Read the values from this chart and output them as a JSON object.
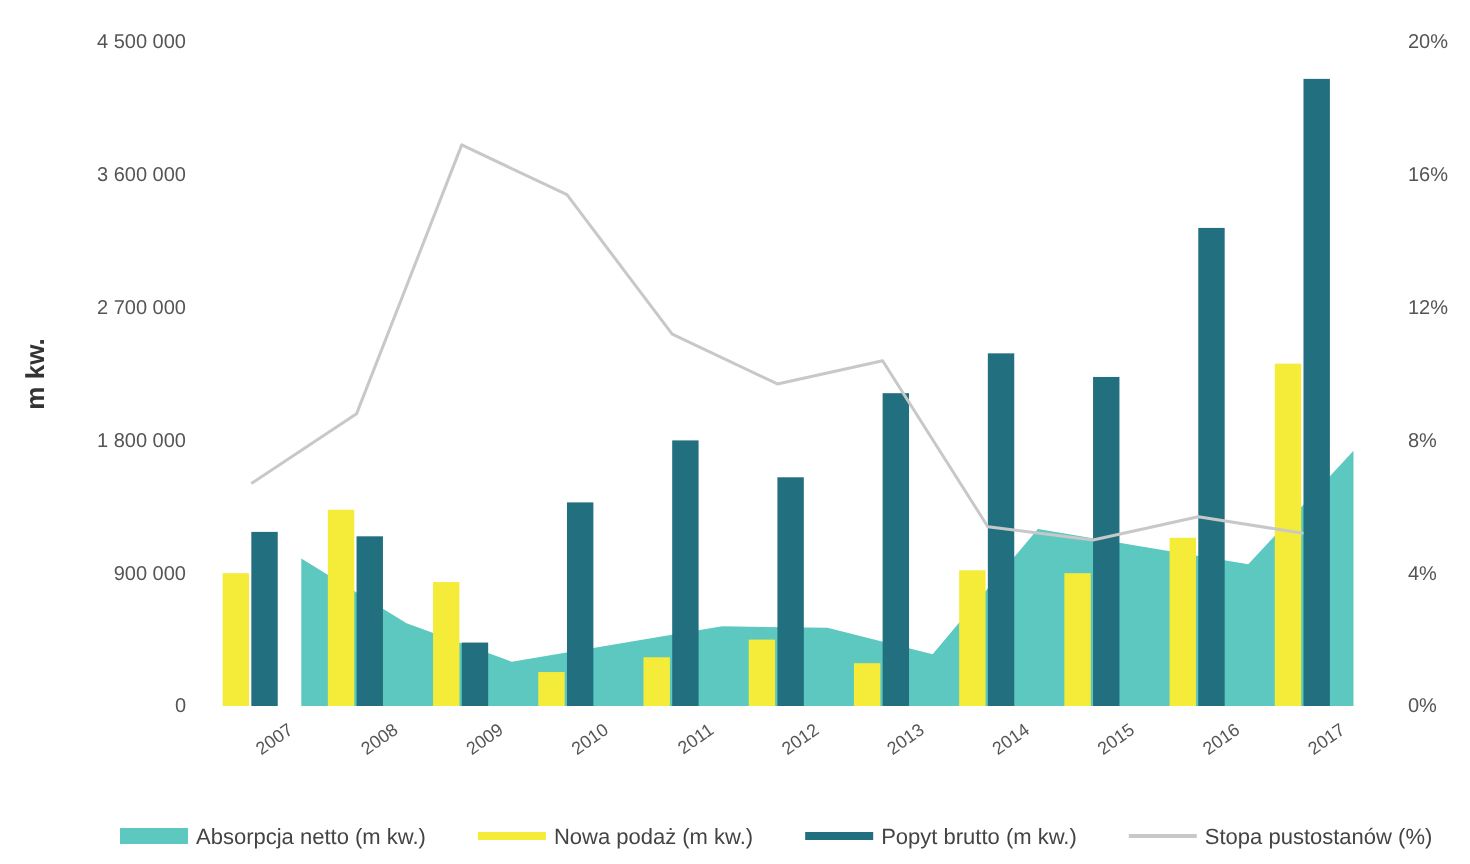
{
  "chart_data": {
    "type": "bar",
    "ylabel": "m kw.",
    "categories": [
      "2007",
      "2008",
      "2009",
      "2010",
      "2011",
      "2012",
      "2013",
      "2014",
      "2015",
      "2016",
      "2017"
    ],
    "series": [
      {
        "name": "Absorpcja netto (m kw.)",
        "type": "area",
        "color": "#5cc8c0",
        "values": [
          1000000,
          560000,
          300000,
          420000,
          540000,
          530000,
          350000,
          1200000,
          1080000,
          960000,
          1730000
        ]
      },
      {
        "name": "Nowa podaż (m kw.)",
        "color": "#f5ec3a",
        "values": [
          900000,
          1330000,
          840000,
          230000,
          330000,
          450000,
          290000,
          920000,
          900000,
          1140000,
          2320000
        ]
      },
      {
        "name": "Popyt brutto (m kw.)",
        "color": "#22707f",
        "values": [
          1180000,
          1150000,
          430000,
          1380000,
          1800000,
          1550000,
          2120000,
          2390000,
          2230000,
          3240000,
          4250000
        ]
      },
      {
        "name": "Stopa pustostanów (%)",
        "type": "line",
        "axis": "y2",
        "color": "#c8c8c8",
        "values": [
          6.7,
          8.8,
          16.9,
          15.4,
          11.2,
          9.7,
          10.4,
          5.4,
          5.0,
          5.7,
          5.2
        ]
      }
    ],
    "ylim": [
      0,
      4500000
    ],
    "yticks": [
      {
        "value": 0,
        "label": "0"
      },
      {
        "value": 900000,
        "label": "900 000"
      },
      {
        "value": 1800000,
        "label": "1 800 000"
      },
      {
        "value": 2700000,
        "label": "2 700 000"
      },
      {
        "value": 3600000,
        "label": "3 600 000"
      },
      {
        "value": 4500000,
        "label": "4 500 000"
      }
    ],
    "y2lim": [
      0,
      20
    ],
    "y2ticks": [
      {
        "value": 0,
        "label": "0%"
      },
      {
        "value": 4,
        "label": "4%"
      },
      {
        "value": 8,
        "label": "8%"
      },
      {
        "value": 12,
        "label": "12%"
      },
      {
        "value": 16,
        "label": "16%"
      },
      {
        "value": 20,
        "label": "20%"
      }
    ],
    "grid": false,
    "legend": "bottom"
  }
}
